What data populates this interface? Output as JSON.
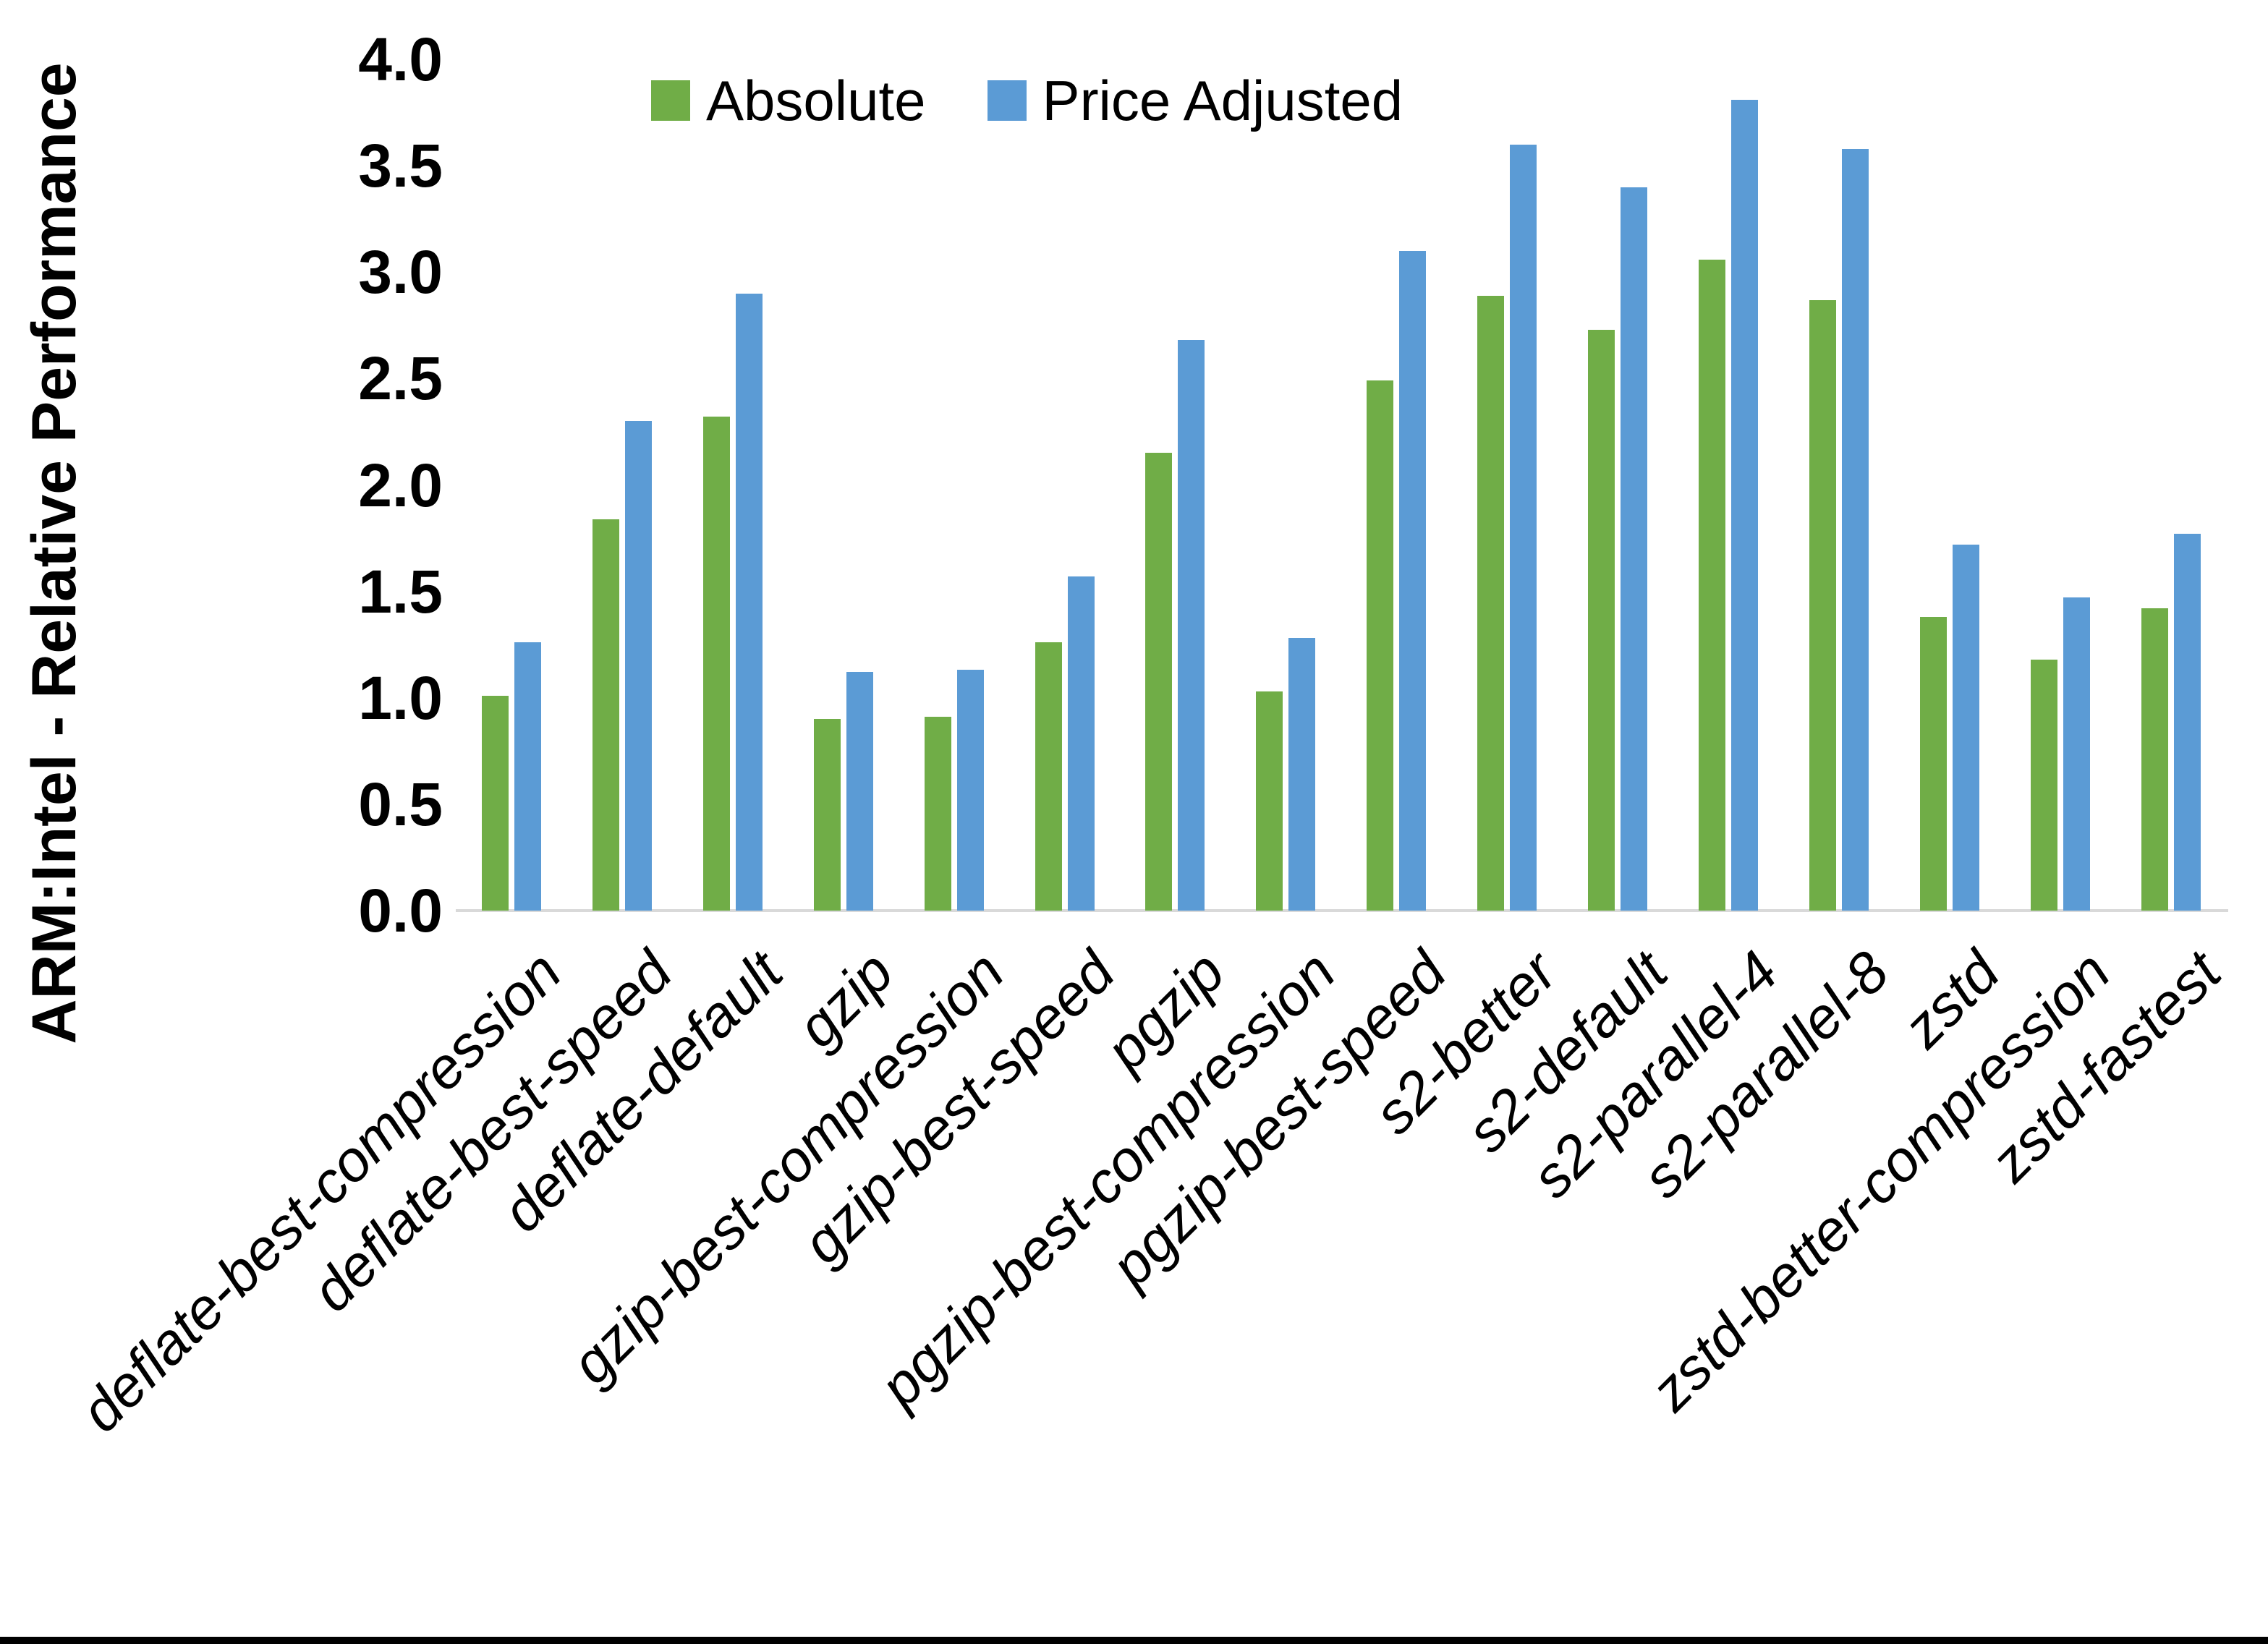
{
  "chart_data": {
    "type": "bar",
    "title": "",
    "ylabel": "ARM:Intel - Relative Performance",
    "xlabel": "",
    "ylim": [
      0.0,
      4.0
    ],
    "ytick_interval": 0.5,
    "ytick_labels": [
      "0.0",
      "0.5",
      "1.0",
      "1.5",
      "2.0",
      "2.5",
      "3.0",
      "3.5",
      "4.0"
    ],
    "grid": false,
    "legend_position": "top-center",
    "axis_line_color": "#D9D9D9",
    "text_color": "#000000",
    "categories": [
      "deflate-best-compression",
      "deflate-best-speed",
      "deflate-default",
      "gzip",
      "gzip-best-compression",
      "gzip-best-speed",
      "pgzip",
      "pgzip-best-compression",
      "pgzip-best-speed",
      "s2-better",
      "s2-default",
      "s2-parallel-4",
      "s2-parallel-8",
      "zstd",
      "zstd-better-compression",
      "zstd-fastest"
    ],
    "series": [
      {
        "name": "Absolute",
        "color": "#70AD47",
        "values": [
          1.01,
          1.84,
          2.32,
          0.9,
          0.91,
          1.26,
          2.15,
          1.03,
          2.49,
          2.89,
          2.73,
          3.06,
          2.87,
          1.38,
          1.18,
          1.42
        ]
      },
      {
        "name": "Price Adjusted",
        "color": "#5B9BD5",
        "values": [
          1.26,
          2.3,
          2.9,
          1.12,
          1.13,
          1.57,
          2.68,
          1.28,
          3.1,
          3.6,
          3.4,
          3.81,
          3.58,
          1.72,
          1.47,
          1.77
        ]
      }
    ]
  },
  "frame": {
    "background": "#FFFFFF",
    "bottom_border_color": "#000000"
  }
}
